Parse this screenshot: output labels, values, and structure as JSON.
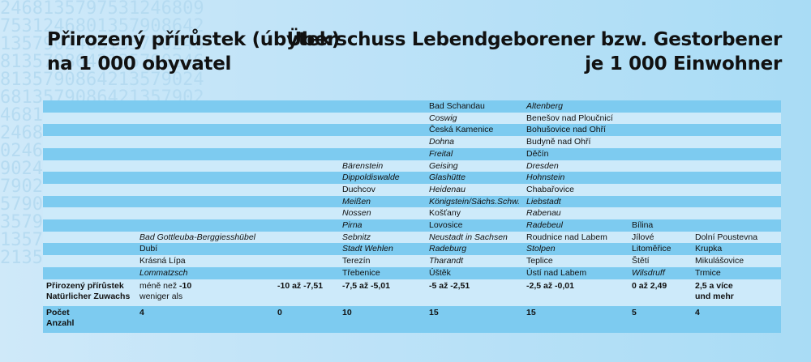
{
  "title_cz": [
    "Přirozený přírůstek (úbytek)",
    "na 1 000 obyvatel"
  ],
  "title_de": [
    "Überschuss Lebendgeborener bzw. Gestorbener",
    "je 1 000 Einwohner"
  ],
  "bg_digits": "246813579753124680975312468013579086421357902468135790246813579864213579024681357908642135790246813579086421357902468135790864213579024681357908642135790246813579086421357902468135790864213579024681357908642135790246813579086421357902468135790864213579024681357908642135790246813579",
  "rows": [
    [
      "",
      "",
      "",
      "",
      "Bad Schandau",
      "*Altenberg",
      "",
      ""
    ],
    [
      "",
      "",
      "",
      "",
      "*Coswig",
      "Benešov nad Ploučnicí",
      "",
      ""
    ],
    [
      "",
      "",
      "",
      "",
      "Česká Kamenice",
      "Bohušovice nad Ohří",
      "",
      ""
    ],
    [
      "",
      "",
      "",
      "",
      "*Dohna",
      "Budyně nad Ohří",
      "",
      ""
    ],
    [
      "",
      "",
      "",
      "",
      "*Freital",
      "Děčín",
      "",
      ""
    ],
    [
      "",
      "",
      "",
      "*Bärenstein",
      "*Geising",
      "*Dresden",
      "",
      ""
    ],
    [
      "",
      "",
      "",
      "*Dippoldiswalde",
      "*Glashütte",
      "*Hohnstein",
      "",
      ""
    ],
    [
      "",
      "",
      "",
      "Duchcov",
      "*Heidenau",
      "Chabařovice",
      "",
      ""
    ],
    [
      "",
      "",
      "",
      "*Meißen",
      "*Königstein/Sächs.Schw.",
      "*Liebstadt",
      "",
      ""
    ],
    [
      "",
      "",
      "",
      "*Nossen",
      "Košťany",
      "*Rabenau",
      "",
      ""
    ],
    [
      "",
      "",
      "",
      "*Pirna",
      "Lovosice",
      "*Radebeul",
      "Bílina",
      ""
    ],
    [
      "",
      "*Bad Gottleuba-Berggiesshübel",
      "",
      "*Sebnitz",
      "*Neustadt in Sachsen",
      "Roudnice nad Labem",
      "Jílové",
      "Dolní Poustevna"
    ],
    [
      "",
      "Dubí",
      "",
      "*Stadt Wehlen",
      "*Radeburg",
      "*Stolpen",
      "Litoměřice",
      "Krupka"
    ],
    [
      "",
      "Krásná Lípa",
      "",
      "Terezín",
      "*Tharandt",
      "Teplice",
      "Štětí",
      "Mikulášovice"
    ],
    [
      "",
      "*Lommatzsch",
      "",
      "Třebenice",
      "Úštěk",
      "Ústí nad Labem",
      "*Wilsdruff",
      "Trmice"
    ]
  ],
  "class_row": {
    "label": [
      "Přirozený přírůstek",
      "Natürlicher Zuwachs"
    ],
    "c1_pre": "méně než ",
    "c1_val": "-10",
    "c1_line2": "weniger als",
    "c2": "-10 až -7,51",
    "c3": "-7,5 až -5,01",
    "c4": "-5 až -2,51",
    "c5": "-2,5 až -0,01",
    "c6": "0 až 2,49",
    "c7": [
      "2,5 a více",
      "und mehr"
    ]
  },
  "count_row": {
    "label": [
      "Počet",
      "Anzahl"
    ],
    "values": [
      "4",
      "0",
      "10",
      "15",
      "15",
      "5",
      "4"
    ]
  }
}
